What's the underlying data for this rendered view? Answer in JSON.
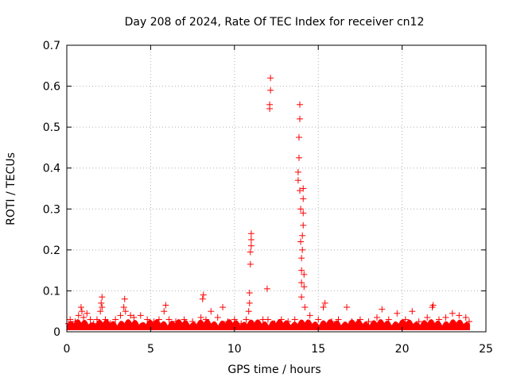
{
  "chart_data": {
    "type": "scatter",
    "title": "Day 208 of 2024, Rate Of TEC Index for receiver cn12",
    "xlabel": "GPS time / hours",
    "ylabel": "ROTI / TECUs",
    "xlim": [
      0,
      25
    ],
    "ylim": [
      0,
      0.7
    ],
    "xticks": [
      "0",
      "5",
      "10",
      "15",
      "20",
      "25"
    ],
    "yticks": [
      "0",
      "0.1",
      "0.2",
      "0.3",
      "0.4",
      "0.5",
      "0.6",
      "0.7"
    ],
    "grid": true,
    "marker": "+",
    "color": "#ff0000",
    "series": [
      {
        "points": [
          [
            0.1,
            0.02
          ],
          [
            0.2,
            0.03
          ],
          [
            0.3,
            0.015
          ],
          [
            0.5,
            0.025
          ],
          [
            0.7,
            0.04
          ],
          [
            0.85,
            0.06
          ],
          [
            0.9,
            0.05
          ],
          [
            1.0,
            0.035
          ],
          [
            1.2,
            0.045
          ],
          [
            1.4,
            0.03
          ],
          [
            1.6,
            0.02
          ],
          [
            1.8,
            0.03
          ],
          [
            2.0,
            0.05
          ],
          [
            2.05,
            0.07
          ],
          [
            2.1,
            0.085
          ],
          [
            2.1,
            0.06
          ],
          [
            2.3,
            0.03
          ],
          [
            2.6,
            0.02
          ],
          [
            2.9,
            0.03
          ],
          [
            3.2,
            0.04
          ],
          [
            3.4,
            0.06
          ],
          [
            3.45,
            0.08
          ],
          [
            3.5,
            0.05
          ],
          [
            3.8,
            0.04
          ],
          [
            4.0,
            0.035
          ],
          [
            4.4,
            0.04
          ],
          [
            4.8,
            0.03
          ],
          [
            5.2,
            0.025
          ],
          [
            5.5,
            0.03
          ],
          [
            5.8,
            0.05
          ],
          [
            5.9,
            0.065
          ],
          [
            6.1,
            0.03
          ],
          [
            6.5,
            0.025
          ],
          [
            7.0,
            0.03
          ],
          [
            7.5,
            0.025
          ],
          [
            8.0,
            0.035
          ],
          [
            8.1,
            0.08
          ],
          [
            8.15,
            0.09
          ],
          [
            8.3,
            0.03
          ],
          [
            8.6,
            0.05
          ],
          [
            9.0,
            0.035
          ],
          [
            9.3,
            0.06
          ],
          [
            9.6,
            0.025
          ],
          [
            10.0,
            0.03
          ],
          [
            10.4,
            0.02
          ],
          [
            10.7,
            0.03
          ],
          [
            10.85,
            0.05
          ],
          [
            10.9,
            0.07
          ],
          [
            10.9,
            0.095
          ],
          [
            10.95,
            0.165
          ],
          [
            10.95,
            0.195
          ],
          [
            11.0,
            0.21
          ],
          [
            11.0,
            0.225
          ],
          [
            11.0,
            0.24
          ],
          [
            11.3,
            0.02
          ],
          [
            11.7,
            0.03
          ],
          [
            11.95,
            0.105
          ],
          [
            12.0,
            0.03
          ],
          [
            12.1,
            0.545
          ],
          [
            12.1,
            0.555
          ],
          [
            12.15,
            0.59
          ],
          [
            12.15,
            0.62
          ],
          [
            12.4,
            0.02
          ],
          [
            12.8,
            0.03
          ],
          [
            13.2,
            0.025
          ],
          [
            13.6,
            0.03
          ],
          [
            13.8,
            0.37
          ],
          [
            13.8,
            0.39
          ],
          [
            13.85,
            0.475
          ],
          [
            13.85,
            0.425
          ],
          [
            13.9,
            0.52
          ],
          [
            13.9,
            0.555
          ],
          [
            13.9,
            0.345
          ],
          [
            13.95,
            0.3
          ],
          [
            13.95,
            0.22
          ],
          [
            14.0,
            0.18
          ],
          [
            14.0,
            0.15
          ],
          [
            14.0,
            0.12
          ],
          [
            14.0,
            0.085
          ],
          [
            14.05,
            0.2
          ],
          [
            14.05,
            0.235
          ],
          [
            14.1,
            0.26
          ],
          [
            14.1,
            0.29
          ],
          [
            14.1,
            0.325
          ],
          [
            14.1,
            0.35
          ],
          [
            14.15,
            0.14
          ],
          [
            14.15,
            0.11
          ],
          [
            14.2,
            0.06
          ],
          [
            14.5,
            0.04
          ],
          [
            15.0,
            0.03
          ],
          [
            15.3,
            0.06
          ],
          [
            15.4,
            0.07
          ],
          [
            15.8,
            0.025
          ],
          [
            16.2,
            0.03
          ],
          [
            16.7,
            0.06
          ],
          [
            17.0,
            0.025
          ],
          [
            17.5,
            0.03
          ],
          [
            18.0,
            0.025
          ],
          [
            18.5,
            0.035
          ],
          [
            18.8,
            0.055
          ],
          [
            19.2,
            0.03
          ],
          [
            19.7,
            0.045
          ],
          [
            20.2,
            0.03
          ],
          [
            20.6,
            0.05
          ],
          [
            21.0,
            0.025
          ],
          [
            21.5,
            0.035
          ],
          [
            21.8,
            0.06
          ],
          [
            21.85,
            0.065
          ],
          [
            22.2,
            0.03
          ],
          [
            22.6,
            0.035
          ],
          [
            23.0,
            0.045
          ],
          [
            23.4,
            0.04
          ],
          [
            23.8,
            0.035
          ],
          [
            24.0,
            0.025
          ]
        ]
      }
    ]
  }
}
